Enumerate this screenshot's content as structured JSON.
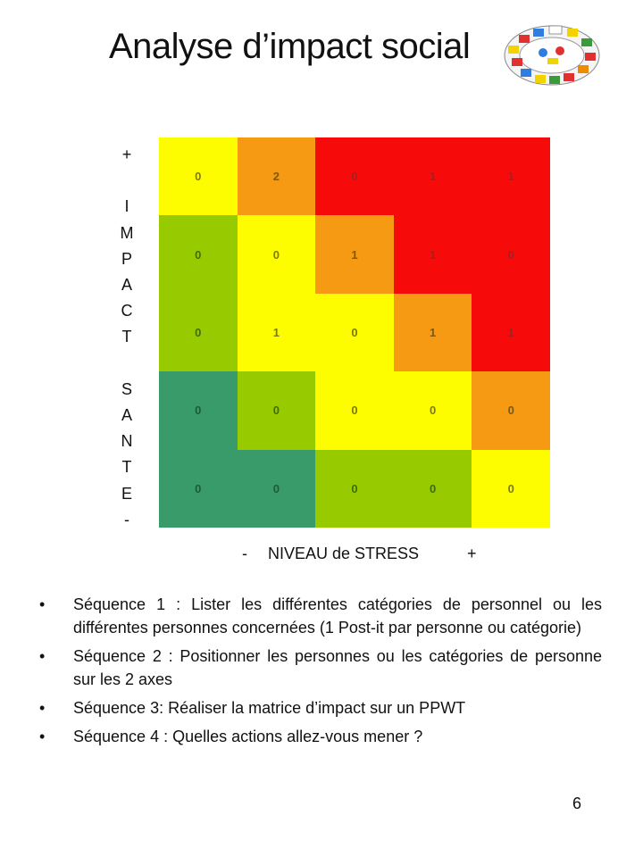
{
  "title": "Analyse d’impact social",
  "y_axis_letters": [
    "+",
    "",
    "I",
    "M",
    "P",
    "A",
    "C",
    "T",
    "",
    "S",
    "A",
    "N",
    "T",
    "E",
    "-"
  ],
  "x_axis": {
    "minus": "-",
    "label": "NIVEAU de STRESS",
    "plus": "+"
  },
  "matrix": {
    "colors": {
      "red": "#f70a0a",
      "orange": "#f59a12",
      "yellow": "#fdfd00",
      "light_green": "#97cb00",
      "dark_green": "#3a9b6a"
    },
    "rows": [
      [
        {
          "value": "0",
          "color": "yellow"
        },
        {
          "value": "2",
          "color": "orange"
        },
        {
          "value": "0",
          "color": "red"
        },
        {
          "value": "1",
          "color": "red"
        },
        {
          "value": "1",
          "color": "red"
        }
      ],
      [
        {
          "value": "0",
          "color": "light_green"
        },
        {
          "value": "0",
          "color": "yellow"
        },
        {
          "value": "1",
          "color": "orange"
        },
        {
          "value": "1",
          "color": "red"
        },
        {
          "value": "0",
          "color": "red"
        }
      ],
      [
        {
          "value": "0",
          "color": "light_green"
        },
        {
          "value": "1",
          "color": "yellow"
        },
        {
          "value": "0",
          "color": "yellow"
        },
        {
          "value": "1",
          "color": "orange"
        },
        {
          "value": "1",
          "color": "red"
        }
      ],
      [
        {
          "value": "0",
          "color": "dark_green"
        },
        {
          "value": "0",
          "color": "light_green"
        },
        {
          "value": "0",
          "color": "yellow"
        },
        {
          "value": "0",
          "color": "yellow"
        },
        {
          "value": "0",
          "color": "orange"
        }
      ],
      [
        {
          "value": "0",
          "color": "dark_green"
        },
        {
          "value": "0",
          "color": "dark_green"
        },
        {
          "value": "0",
          "color": "light_green"
        },
        {
          "value": "0",
          "color": "light_green"
        },
        {
          "value": "0",
          "color": "yellow"
        }
      ]
    ]
  },
  "bullets": [
    "Séquence 1 : Lister les différentes catégories de personnel ou les différentes personnes concernées  (1 Post-it par personne ou catégorie)",
    "Séquence 2 : Positionner les personnes ou les catégories de personne sur les 2 axes",
    "Séquence 3: Réaliser la matrice d’impact  sur un PPWT",
    "Séquence 4 : Quelles actions allez-vous mener ?"
  ],
  "bullet_glyph": "•",
  "page_number": "6"
}
